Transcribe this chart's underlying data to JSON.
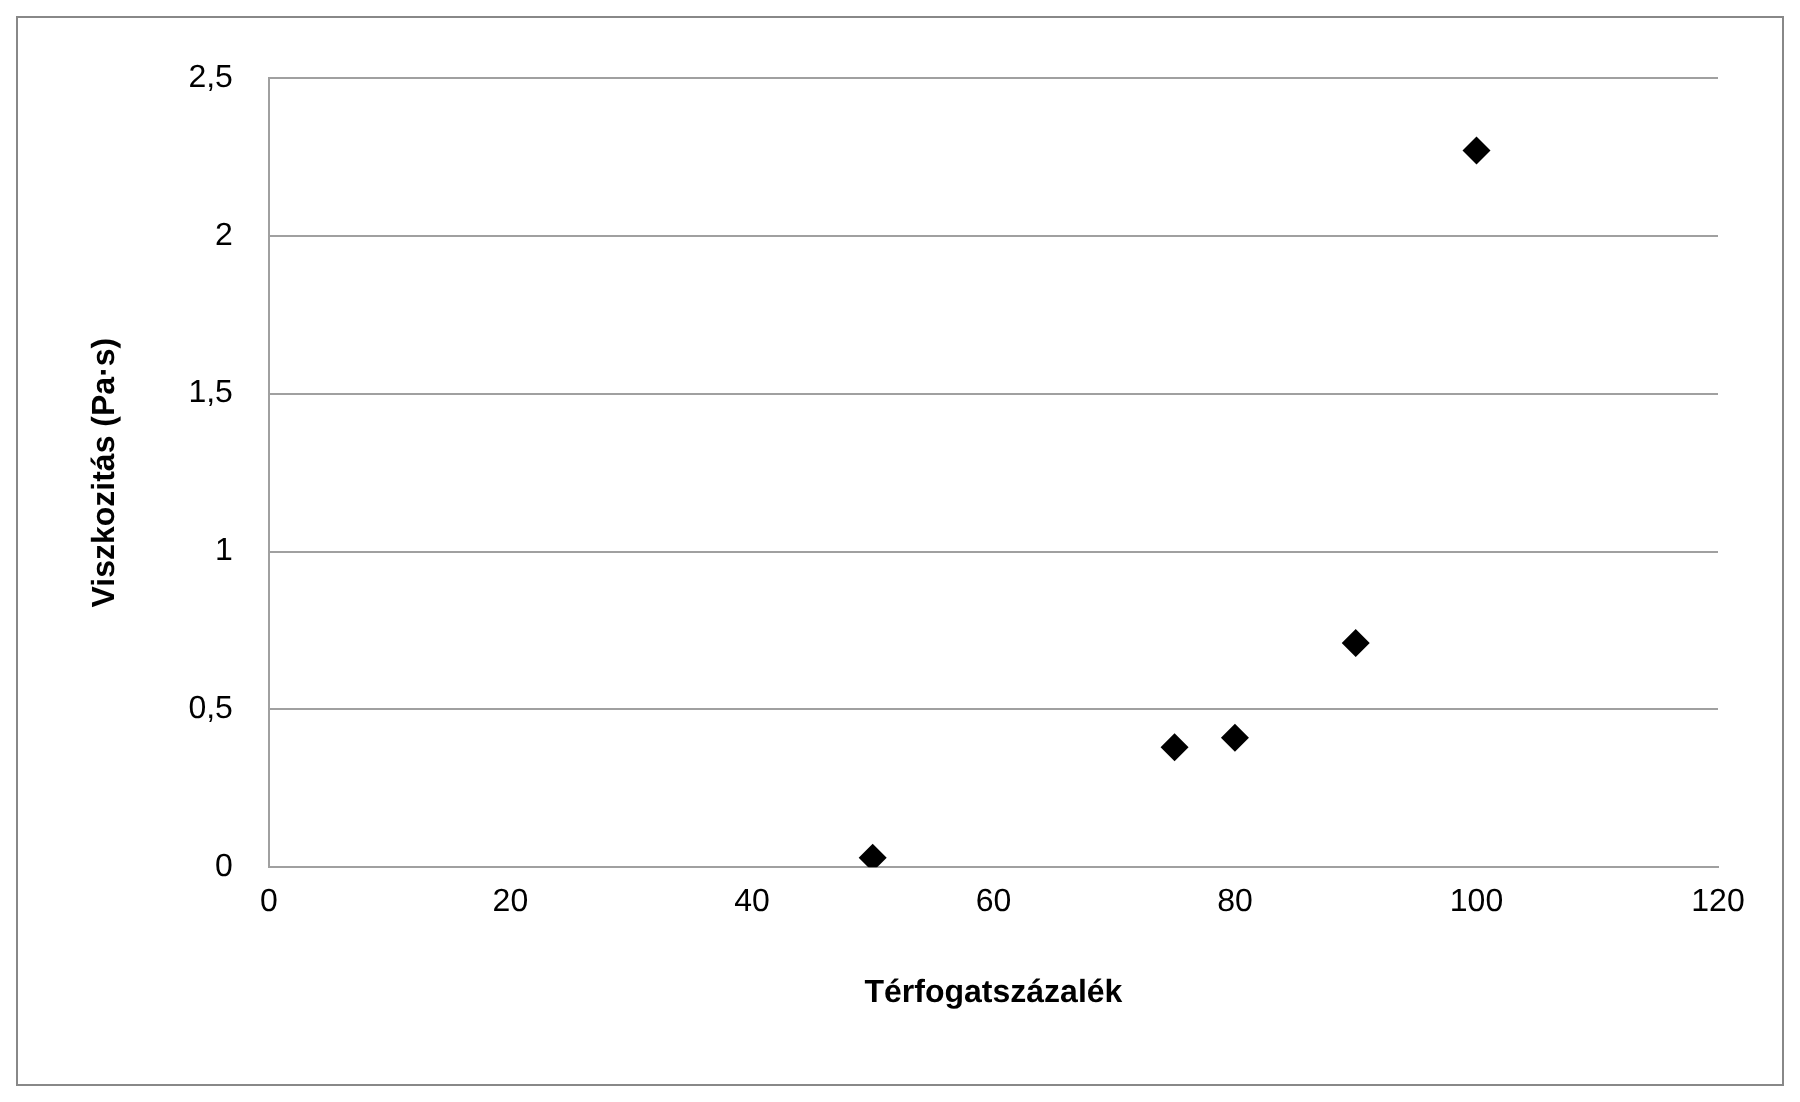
{
  "chart_data": {
    "type": "scatter",
    "xlabel": "Térfogatszázalék",
    "ylabel": "Viszkozitás (Pa·s)",
    "x": [
      50,
      75,
      80,
      90,
      100
    ],
    "series": [
      {
        "color": "#000000",
        "values": [
          0.03,
          0.38,
          0.41,
          0.71,
          2.27
        ]
      }
    ],
    "xlim": [
      0,
      120
    ],
    "xticks": [
      0,
      20,
      40,
      60,
      80,
      100,
      120
    ],
    "ylim": [
      0,
      2.5
    ],
    "yticks": [
      {
        "value": 0,
        "label": "0"
      },
      {
        "value": 0.5,
        "label": "0,5"
      },
      {
        "value": 1,
        "label": "1"
      },
      {
        "value": 1.5,
        "label": "1,5"
      },
      {
        "value": 2,
        "label": "2"
      },
      {
        "value": 2.5,
        "label": "2,5"
      }
    ],
    "grid": "y",
    "legend": false,
    "marker": "diamond"
  }
}
